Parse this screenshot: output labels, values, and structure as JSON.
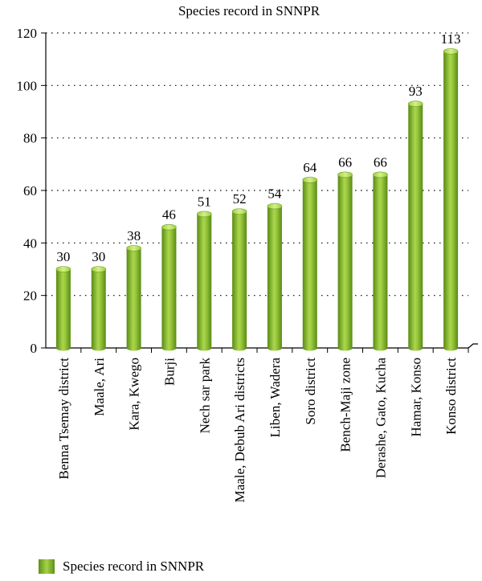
{
  "chart_data": {
    "type": "bar",
    "title": "Species record in SNNPR",
    "categories": [
      "Benna Tsemay district",
      "Maale, Ari",
      "Kara, Kwego",
      "Burji",
      "Nech sar park",
      "Maale, Debub Ari districts",
      "Liben, Wadera",
      "Soro district",
      "Bench-Maji zone",
      "Derashe, Gato, Kucha",
      "Hamar, Konso",
      "Konso district"
    ],
    "series": [
      {
        "name": "Species record in SNNPR",
        "values": [
          30,
          30,
          38,
          46,
          51,
          52,
          54,
          64,
          66,
          66,
          93,
          113
        ],
        "color": "#8dbb32"
      }
    ],
    "ylim": [
      0,
      120
    ],
    "yticks": [
      "0",
      "20",
      "40",
      "60",
      "80",
      "100",
      "120"
    ],
    "grid": true,
    "legend": "bottom-left"
  }
}
